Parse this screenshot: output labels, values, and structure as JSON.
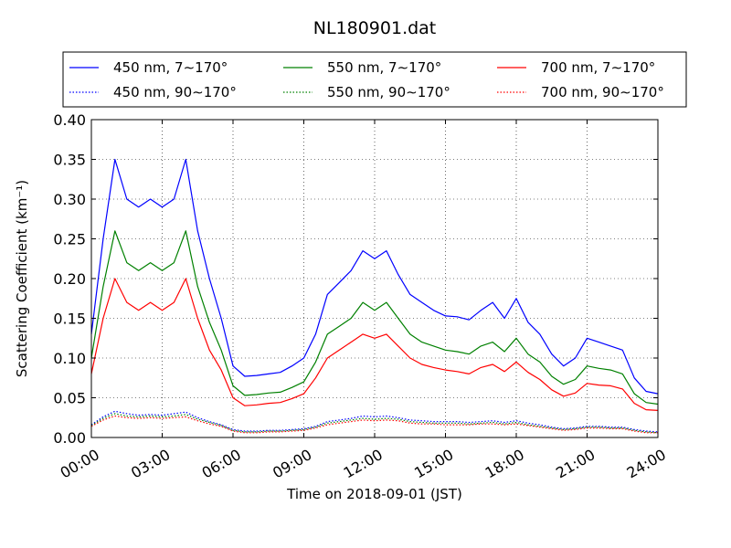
{
  "chart_data": {
    "type": "line",
    "title": "NL180901.dat",
    "xlabel": "Time on 2018-09-01 (JST)",
    "ylabel": "Scattering Coefficient (km⁻¹)",
    "xlim": [
      "00:00",
      "24:00"
    ],
    "ylim": [
      0,
      0.4
    ],
    "x_ticks": [
      "00:00",
      "03:00",
      "06:00",
      "09:00",
      "12:00",
      "15:00",
      "18:00",
      "21:00",
      "24:00"
    ],
    "y_ticks": [
      "0.00",
      "0.05",
      "0.10",
      "0.15",
      "0.20",
      "0.25",
      "0.30",
      "0.35",
      "0.40"
    ],
    "grid": true,
    "legend_position": "top, above plot, 3 columns",
    "x": [
      "00:00",
      "00:30",
      "01:00",
      "01:30",
      "02:00",
      "02:30",
      "03:00",
      "03:30",
      "04:00",
      "04:30",
      "05:00",
      "05:30",
      "06:00",
      "06:30",
      "07:00",
      "07:30",
      "08:00",
      "08:30",
      "09:00",
      "09:30",
      "10:00",
      "10:30",
      "11:00",
      "11:30",
      "12:00",
      "12:30",
      "13:00",
      "13:30",
      "14:00",
      "14:30",
      "15:00",
      "15:30",
      "16:00",
      "16:30",
      "17:00",
      "17:30",
      "18:00",
      "18:30",
      "19:00",
      "19:30",
      "20:00",
      "20:30",
      "21:00",
      "21:30",
      "22:00",
      "22:30",
      "23:00",
      "23:30",
      "24:00"
    ],
    "series": [
      {
        "name": "450 nm, 7∼170°",
        "color": "#0000ff",
        "style": "solid",
        "values": [
          0.13,
          0.25,
          0.35,
          0.3,
          0.29,
          0.3,
          0.29,
          0.3,
          0.35,
          0.26,
          0.2,
          0.15,
          0.09,
          0.077,
          0.078,
          0.08,
          0.082,
          0.09,
          0.1,
          0.13,
          0.18,
          0.195,
          0.21,
          0.235,
          0.225,
          0.235,
          0.205,
          0.18,
          0.17,
          0.16,
          0.153,
          0.152,
          0.148,
          0.16,
          0.17,
          0.15,
          0.175,
          0.145,
          0.13,
          0.105,
          0.09,
          0.1,
          0.125,
          0.12,
          0.115,
          0.11,
          0.075,
          0.058,
          0.055
        ]
      },
      {
        "name": "550 nm, 7∼170°",
        "color": "#008000",
        "style": "solid",
        "values": [
          0.1,
          0.19,
          0.26,
          0.22,
          0.21,
          0.22,
          0.21,
          0.22,
          0.26,
          0.19,
          0.145,
          0.11,
          0.065,
          0.053,
          0.054,
          0.056,
          0.057,
          0.063,
          0.07,
          0.095,
          0.13,
          0.14,
          0.15,
          0.17,
          0.16,
          0.17,
          0.15,
          0.13,
          0.12,
          0.115,
          0.11,
          0.108,
          0.105,
          0.115,
          0.12,
          0.108,
          0.125,
          0.105,
          0.095,
          0.077,
          0.067,
          0.073,
          0.09,
          0.087,
          0.085,
          0.08,
          0.055,
          0.044,
          0.042
        ]
      },
      {
        "name": "700 nm, 7∼170°",
        "color": "#ff0000",
        "style": "solid",
        "values": [
          0.08,
          0.15,
          0.2,
          0.17,
          0.16,
          0.17,
          0.16,
          0.17,
          0.2,
          0.15,
          0.11,
          0.085,
          0.05,
          0.04,
          0.041,
          0.043,
          0.044,
          0.049,
          0.055,
          0.075,
          0.1,
          0.11,
          0.12,
          0.13,
          0.125,
          0.13,
          0.115,
          0.1,
          0.092,
          0.088,
          0.085,
          0.083,
          0.08,
          0.088,
          0.092,
          0.083,
          0.095,
          0.082,
          0.073,
          0.06,
          0.052,
          0.056,
          0.068,
          0.066,
          0.065,
          0.061,
          0.043,
          0.035,
          0.034
        ]
      },
      {
        "name": "450 nm, 90∼170°",
        "color": "#0000ff",
        "style": "dotted",
        "values": [
          0.016,
          0.026,
          0.033,
          0.03,
          0.028,
          0.029,
          0.028,
          0.03,
          0.032,
          0.025,
          0.02,
          0.016,
          0.01,
          0.008,
          0.008,
          0.009,
          0.009,
          0.01,
          0.011,
          0.014,
          0.02,
          0.022,
          0.024,
          0.027,
          0.026,
          0.027,
          0.025,
          0.022,
          0.021,
          0.02,
          0.02,
          0.02,
          0.019,
          0.02,
          0.021,
          0.019,
          0.021,
          0.018,
          0.016,
          0.013,
          0.011,
          0.012,
          0.014,
          0.014,
          0.013,
          0.013,
          0.01,
          0.008,
          0.007
        ]
      },
      {
        "name": "550 nm, 90∼170°",
        "color": "#008000",
        "style": "dotted",
        "values": [
          0.015,
          0.024,
          0.03,
          0.027,
          0.026,
          0.027,
          0.026,
          0.027,
          0.029,
          0.023,
          0.019,
          0.015,
          0.009,
          0.007,
          0.007,
          0.008,
          0.008,
          0.009,
          0.01,
          0.013,
          0.018,
          0.02,
          0.022,
          0.024,
          0.023,
          0.024,
          0.023,
          0.02,
          0.019,
          0.018,
          0.018,
          0.018,
          0.017,
          0.018,
          0.019,
          0.017,
          0.019,
          0.016,
          0.014,
          0.012,
          0.01,
          0.011,
          0.013,
          0.013,
          0.012,
          0.012,
          0.009,
          0.007,
          0.006
        ]
      },
      {
        "name": "700 nm, 90∼170°",
        "color": "#ff0000",
        "style": "dotted",
        "values": [
          0.014,
          0.022,
          0.027,
          0.025,
          0.024,
          0.025,
          0.024,
          0.025,
          0.026,
          0.021,
          0.017,
          0.014,
          0.008,
          0.006,
          0.006,
          0.007,
          0.007,
          0.008,
          0.009,
          0.012,
          0.016,
          0.018,
          0.02,
          0.022,
          0.021,
          0.022,
          0.021,
          0.018,
          0.017,
          0.017,
          0.016,
          0.016,
          0.016,
          0.017,
          0.017,
          0.016,
          0.017,
          0.015,
          0.013,
          0.011,
          0.009,
          0.01,
          0.012,
          0.012,
          0.011,
          0.011,
          0.008,
          0.006,
          0.006
        ]
      }
    ]
  }
}
